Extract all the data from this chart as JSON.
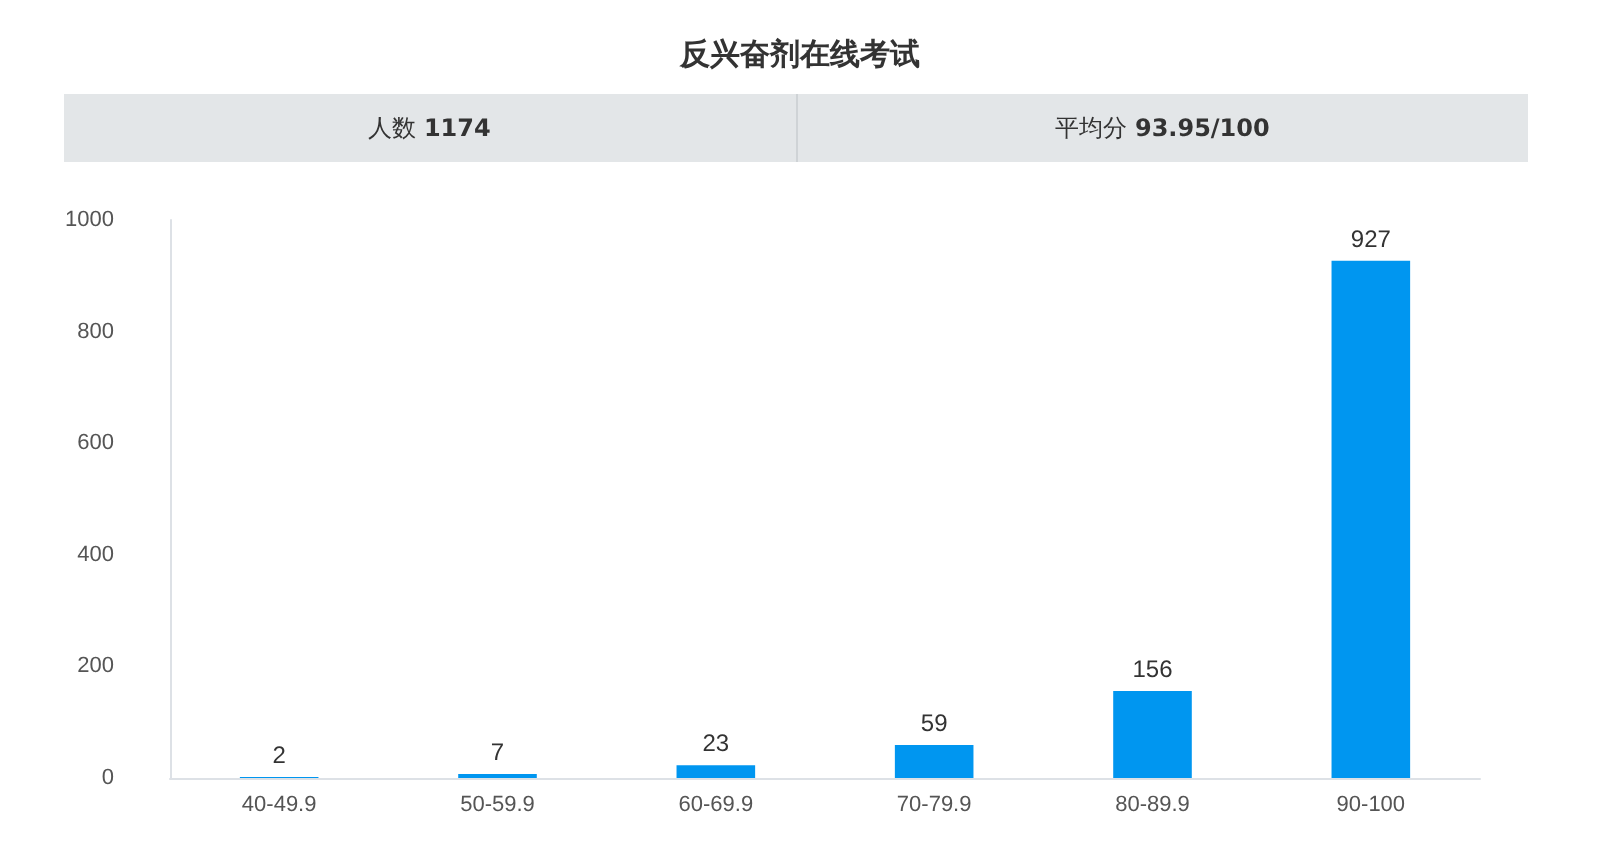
{
  "chart_data": {
    "type": "bar",
    "title": "反兴奋剂在线考试",
    "annotations": [
      "人数 1174",
      "平均分 93.95/100"
    ],
    "categories": [
      "40-49.9",
      "50-59.9",
      "60-69.9",
      "70-79.9",
      "80-89.9",
      "90-100"
    ],
    "values": [
      2,
      7,
      23,
      59,
      156,
      927
    ],
    "color": "#0096f0",
    "ylim": [
      0,
      1000
    ],
    "yticks": [
      0,
      200,
      400,
      600,
      800,
      1000
    ],
    "grid": false,
    "data_labels": true
  }
}
